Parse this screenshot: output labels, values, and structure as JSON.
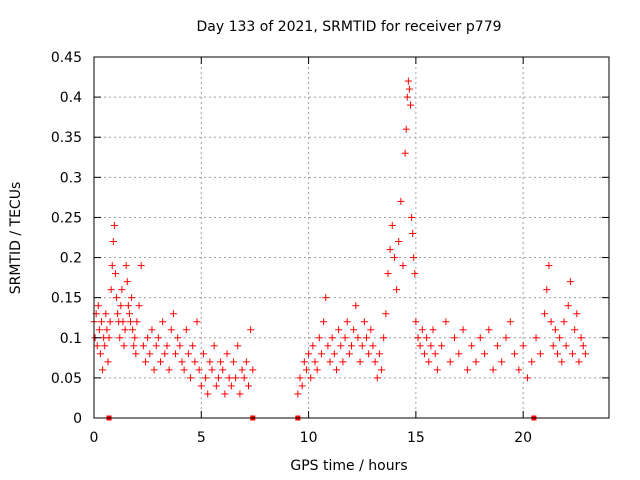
{
  "chart_data": {
    "type": "scatter",
    "title": "Day 133 of 2021, SRMTID for receiver p779",
    "xlabel": "GPS time / hours",
    "ylabel": "SRMTID / TECUs",
    "xlim": [
      0,
      24
    ],
    "ylim": [
      0,
      0.45
    ],
    "xticks": [
      0,
      5,
      10,
      15,
      20
    ],
    "xtick_labels": [
      "0",
      "5",
      "10",
      "15",
      "20"
    ],
    "yticks": [
      0,
      0.05,
      0.1,
      0.15,
      0.2,
      0.25,
      0.3,
      0.35,
      0.4,
      0.45
    ],
    "ytick_labels": [
      "0",
      "0.05",
      "0.1",
      "0.15",
      "0.2",
      "0.25",
      "0.3",
      "0.35",
      "0.4",
      "0.45"
    ],
    "grid": true,
    "marker": "+",
    "color": "#ff0000",
    "zero_markers_x": [
      0.7,
      7.4,
      9.5,
      20.5
    ],
    "series": [
      {
        "name": "SRMTID",
        "points": [
          [
            0.0,
            0.12
          ],
          [
            0.05,
            0.1
          ],
          [
            0.1,
            0.13
          ],
          [
            0.15,
            0.09
          ],
          [
            0.2,
            0.14
          ],
          [
            0.25,
            0.11
          ],
          [
            0.3,
            0.08
          ],
          [
            0.35,
            0.12
          ],
          [
            0.4,
            0.06
          ],
          [
            0.45,
            0.1
          ],
          [
            0.5,
            0.09
          ],
          [
            0.55,
            0.13
          ],
          [
            0.6,
            0.11
          ],
          [
            0.65,
            0.07
          ],
          [
            0.7,
            0.1
          ],
          [
            0.75,
            0.12
          ],
          [
            0.8,
            0.16
          ],
          [
            0.85,
            0.19
          ],
          [
            0.9,
            0.22
          ],
          [
            0.95,
            0.24
          ],
          [
            1.0,
            0.18
          ],
          [
            1.05,
            0.15
          ],
          [
            1.1,
            0.13
          ],
          [
            1.15,
            0.12
          ],
          [
            1.2,
            0.1
          ],
          [
            1.25,
            0.14
          ],
          [
            1.3,
            0.16
          ],
          [
            1.35,
            0.12
          ],
          [
            1.4,
            0.09
          ],
          [
            1.45,
            0.11
          ],
          [
            1.5,
            0.19
          ],
          [
            1.55,
            0.17
          ],
          [
            1.6,
            0.14
          ],
          [
            1.65,
            0.13
          ],
          [
            1.7,
            0.12
          ],
          [
            1.75,
            0.15
          ],
          [
            1.8,
            0.11
          ],
          [
            1.85,
            0.09
          ],
          [
            1.9,
            0.1
          ],
          [
            1.95,
            0.08
          ],
          [
            2.0,
            0.12
          ],
          [
            2.1,
            0.14
          ],
          [
            2.2,
            0.19
          ],
          [
            2.3,
            0.09
          ],
          [
            2.4,
            0.07
          ],
          [
            2.5,
            0.1
          ],
          [
            2.6,
            0.08
          ],
          [
            2.7,
            0.11
          ],
          [
            2.8,
            0.06
          ],
          [
            2.9,
            0.09
          ],
          [
            3.0,
            0.1
          ],
          [
            3.1,
            0.07
          ],
          [
            3.2,
            0.12
          ],
          [
            3.3,
            0.08
          ],
          [
            3.4,
            0.09
          ],
          [
            3.5,
            0.06
          ],
          [
            3.6,
            0.11
          ],
          [
            3.7,
            0.13
          ],
          [
            3.8,
            0.08
          ],
          [
            3.9,
            0.1
          ],
          [
            4.0,
            0.09
          ],
          [
            4.1,
            0.07
          ],
          [
            4.2,
            0.06
          ],
          [
            4.3,
            0.11
          ],
          [
            4.4,
            0.08
          ],
          [
            4.5,
            0.05
          ],
          [
            4.6,
            0.09
          ],
          [
            4.7,
            0.07
          ],
          [
            4.8,
            0.12
          ],
          [
            4.9,
            0.06
          ],
          [
            5.0,
            0.04
          ],
          [
            5.1,
            0.08
          ],
          [
            5.2,
            0.05
          ],
          [
            5.3,
            0.03
          ],
          [
            5.4,
            0.07
          ],
          [
            5.5,
            0.06
          ],
          [
            5.6,
            0.09
          ],
          [
            5.7,
            0.04
          ],
          [
            5.8,
            0.05
          ],
          [
            5.9,
            0.07
          ],
          [
            6.0,
            0.06
          ],
          [
            6.1,
            0.03
          ],
          [
            6.2,
            0.08
          ],
          [
            6.3,
            0.05
          ],
          [
            6.4,
            0.04
          ],
          [
            6.5,
            0.07
          ],
          [
            6.6,
            0.05
          ],
          [
            6.7,
            0.09
          ],
          [
            6.8,
            0.03
          ],
          [
            6.9,
            0.06
          ],
          [
            7.0,
            0.05
          ],
          [
            7.1,
            0.07
          ],
          [
            7.2,
            0.04
          ],
          [
            7.3,
            0.11
          ],
          [
            7.4,
            0.06
          ],
          [
            9.5,
            0.03
          ],
          [
            9.6,
            0.05
          ],
          [
            9.7,
            0.04
          ],
          [
            9.8,
            0.07
          ],
          [
            9.9,
            0.06
          ],
          [
            10.0,
            0.08
          ],
          [
            10.1,
            0.05
          ],
          [
            10.2,
            0.09
          ],
          [
            10.3,
            0.07
          ],
          [
            10.4,
            0.06
          ],
          [
            10.5,
            0.1
          ],
          [
            10.6,
            0.08
          ],
          [
            10.7,
            0.12
          ],
          [
            10.8,
            0.15
          ],
          [
            10.9,
            0.09
          ],
          [
            11.0,
            0.07
          ],
          [
            11.1,
            0.1
          ],
          [
            11.2,
            0.08
          ],
          [
            11.3,
            0.06
          ],
          [
            11.4,
            0.11
          ],
          [
            11.5,
            0.09
          ],
          [
            11.6,
            0.07
          ],
          [
            11.7,
            0.1
          ],
          [
            11.8,
            0.12
          ],
          [
            11.9,
            0.08
          ],
          [
            12.0,
            0.09
          ],
          [
            12.1,
            0.11
          ],
          [
            12.2,
            0.14
          ],
          [
            12.3,
            0.1
          ],
          [
            12.4,
            0.07
          ],
          [
            12.5,
            0.09
          ],
          [
            12.6,
            0.12
          ],
          [
            12.7,
            0.1
          ],
          [
            12.8,
            0.08
          ],
          [
            12.9,
            0.11
          ],
          [
            13.0,
            0.09
          ],
          [
            13.1,
            0.07
          ],
          [
            13.2,
            0.05
          ],
          [
            13.3,
            0.08
          ],
          [
            13.4,
            0.06
          ],
          [
            13.5,
            0.1
          ],
          [
            13.6,
            0.13
          ],
          [
            13.7,
            0.18
          ],
          [
            13.8,
            0.21
          ],
          [
            13.9,
            0.24
          ],
          [
            14.0,
            0.2
          ],
          [
            14.1,
            0.16
          ],
          [
            14.2,
            0.22
          ],
          [
            14.3,
            0.27
          ],
          [
            14.4,
            0.19
          ],
          [
            14.5,
            0.33
          ],
          [
            14.55,
            0.36
          ],
          [
            14.6,
            0.4
          ],
          [
            14.65,
            0.42
          ],
          [
            14.7,
            0.41
          ],
          [
            14.75,
            0.39
          ],
          [
            14.8,
            0.25
          ],
          [
            14.85,
            0.23
          ],
          [
            14.9,
            0.2
          ],
          [
            14.95,
            0.18
          ],
          [
            15.0,
            0.12
          ],
          [
            15.1,
            0.1
          ],
          [
            15.2,
            0.09
          ],
          [
            15.3,
            0.11
          ],
          [
            15.4,
            0.08
          ],
          [
            15.5,
            0.1
          ],
          [
            15.6,
            0.07
          ],
          [
            15.7,
            0.09
          ],
          [
            15.8,
            0.11
          ],
          [
            15.9,
            0.08
          ],
          [
            16.0,
            0.06
          ],
          [
            16.2,
            0.09
          ],
          [
            16.4,
            0.12
          ],
          [
            16.6,
            0.07
          ],
          [
            16.8,
            0.1
          ],
          [
            17.0,
            0.08
          ],
          [
            17.2,
            0.11
          ],
          [
            17.4,
            0.06
          ],
          [
            17.6,
            0.09
          ],
          [
            17.8,
            0.07
          ],
          [
            18.0,
            0.1
          ],
          [
            18.2,
            0.08
          ],
          [
            18.4,
            0.11
          ],
          [
            18.6,
            0.06
          ],
          [
            18.8,
            0.09
          ],
          [
            19.0,
            0.07
          ],
          [
            19.2,
            0.1
          ],
          [
            19.4,
            0.12
          ],
          [
            19.6,
            0.08
          ],
          [
            19.8,
            0.06
          ],
          [
            20.0,
            0.09
          ],
          [
            20.2,
            0.05
          ],
          [
            20.4,
            0.07
          ],
          [
            20.6,
            0.1
          ],
          [
            20.8,
            0.08
          ],
          [
            21.0,
            0.13
          ],
          [
            21.1,
            0.16
          ],
          [
            21.2,
            0.19
          ],
          [
            21.3,
            0.12
          ],
          [
            21.4,
            0.09
          ],
          [
            21.5,
            0.11
          ],
          [
            21.6,
            0.08
          ],
          [
            21.7,
            0.1
          ],
          [
            21.8,
            0.07
          ],
          [
            21.9,
            0.12
          ],
          [
            22.0,
            0.09
          ],
          [
            22.1,
            0.14
          ],
          [
            22.2,
            0.17
          ],
          [
            22.3,
            0.08
          ],
          [
            22.4,
            0.11
          ],
          [
            22.5,
            0.13
          ],
          [
            22.6,
            0.07
          ],
          [
            22.7,
            0.1
          ],
          [
            22.8,
            0.09
          ],
          [
            22.9,
            0.08
          ]
        ]
      }
    ]
  }
}
